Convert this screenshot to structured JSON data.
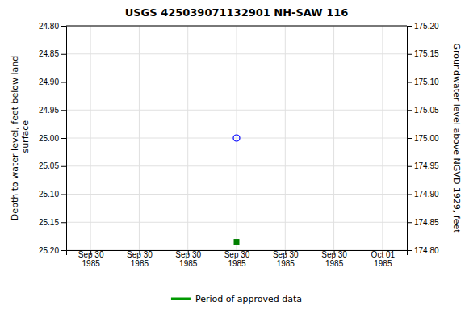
{
  "chart_data": {
    "type": "scatter",
    "title": "USGS 425039071132901 NH-SAW  116",
    "ylabel": "Depth to water level, feet below land\n surface",
    "y2label": "Groundwater level above NGVD 1929, feet",
    "categories": [
      "Sep 30\n1985",
      "Sep 30\n1985",
      "Sep 30\n1985",
      "Sep 30\n1985",
      "Sep 30\n1985",
      "Sep 30\n1985",
      "Oct 01\n1985"
    ],
    "series": [
      {
        "color": "blue",
        "marker": "circle",
        "values": [
          null,
          null,
          null,
          25.0,
          null,
          null,
          null
        ]
      },
      {
        "color": "green",
        "marker": "square",
        "values": [
          null,
          null,
          null,
          25.185,
          null,
          null,
          null
        ]
      },
      {
        "name": "Period of approved data",
        "color": "#009900",
        "type": "line",
        "values": [
          null,
          null,
          null,
          null,
          null,
          null,
          null
        ]
      }
    ],
    "ylim": [
      25.2,
      24.8
    ],
    "yticks": [
      {
        "value": 24.8,
        "label": "24.80"
      },
      {
        "value": 24.85,
        "label": "24.85"
      },
      {
        "value": 24.9,
        "label": "24.90"
      },
      {
        "value": 24.95,
        "label": "24.95"
      },
      {
        "value": 25.0,
        "label": "25.00"
      },
      {
        "value": 25.05,
        "label": "25.05"
      },
      {
        "value": 25.1,
        "label": "25.10"
      },
      {
        "value": 25.15,
        "label": "25.15"
      },
      {
        "value": 25.2,
        "label": "25.20"
      }
    ],
    "y2lim": [
      174.8,
      175.2
    ],
    "y2ticks": [
      {
        "value": 175.2,
        "label": "175.20"
      },
      {
        "value": 175.15,
        "label": "175.15"
      },
      {
        "value": 175.1,
        "label": "175.10"
      },
      {
        "value": 175.05,
        "label": "175.05"
      },
      {
        "value": 175.0,
        "label": "175.00"
      },
      {
        "value": 174.95,
        "label": "174.95"
      },
      {
        "value": 174.9,
        "label": "174.90"
      },
      {
        "value": 174.85,
        "label": "174.85"
      },
      {
        "value": 174.8,
        "label": "174.80"
      }
    ],
    "grid": true,
    "legend": "bottom"
  }
}
